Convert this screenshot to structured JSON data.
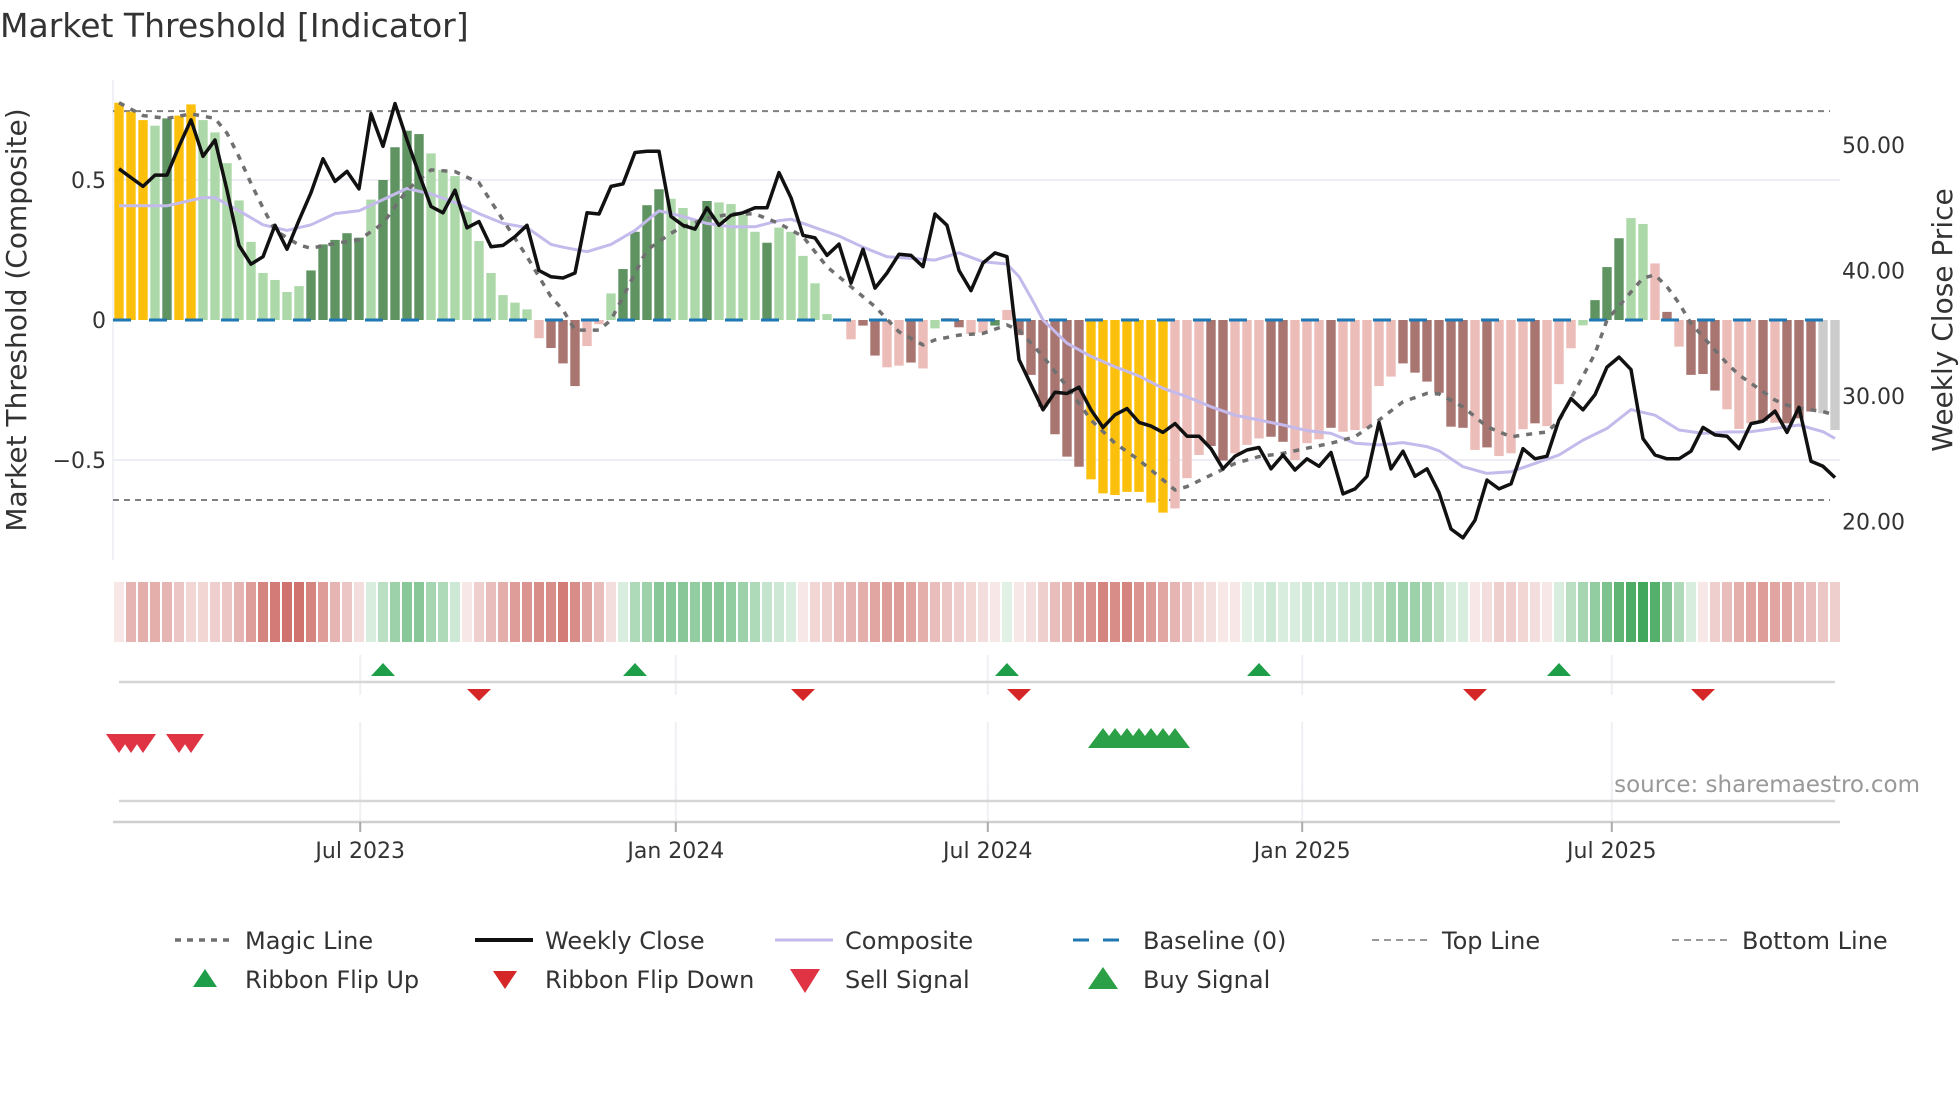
{
  "title": "Market Threshold [Indicator]",
  "source": "source: sharemaestro.com",
  "chart_data": {
    "type": "bar",
    "title": "Market Threshold [Indicator]",
    "ylabel": "Market Threshold (Composite)",
    "ylabel_right": "Weekly Close Price",
    "ylim": [
      -0.857,
      0.857
    ],
    "ylim_right": [
      16.9,
      55.2
    ],
    "yticks": [
      {
        "v": 0.5,
        "label": "0.5"
      },
      {
        "v": 0,
        "label": "0"
      },
      {
        "v": -0.5,
        "label": "−0.5"
      }
    ],
    "yticks_right": [
      {
        "v": 50,
        "label": "50.00"
      },
      {
        "v": 40,
        "label": "40.00"
      },
      {
        "v": 30,
        "label": "30.00"
      },
      {
        "v": 20,
        "label": "20.00"
      }
    ],
    "xticks": [
      {
        "week": 20.1,
        "label": "Jul 2023"
      },
      {
        "week": 46.4,
        "label": "Jan 2024"
      },
      {
        "week": 72.4,
        "label": "Jul 2024"
      },
      {
        "week": 98.6,
        "label": "Jan 2025"
      },
      {
        "week": 124.4,
        "label": "Jul 2025"
      }
    ],
    "top_line": 0.746,
    "bottom_line": -0.643,
    "baseline": 0,
    "colors": {
      "Y": "#fcc00c",
      "G": "#5f9462",
      "g": "#add8a9",
      "R": "#a87571",
      "r": "#ebbcb8",
      "close": "#111111",
      "composite": "#c4baec",
      "magic": "#707070",
      "baseline": "#1f77b4",
      "ribbon_pos": "#2e9e4a",
      "ribbon_neg": "#c5524c",
      "flip_up": "#1e9e48",
      "flip_down": "#d62728",
      "sell": "#e03444",
      "buy": "#2ca046"
    },
    "bar_kinds": "YYYgGYYgggggggggGGGGGgGGGGgggggggggrRRRrrgGGGGgggGggggGgggggrrRRrrRrgrRrrGrRRRRRRYYYYYYYrrrRRrrrRRrrrRrrrrrRRRRRRrRrrrRrrrgGGGggrRrRRRrrrRrRRR",
    "bars": [
      0.776,
      0.744,
      0.714,
      0.694,
      0.72,
      0.73,
      0.77,
      0.714,
      0.67,
      0.56,
      0.427,
      0.279,
      0.168,
      0.143,
      0.1,
      0.121,
      0.177,
      0.27,
      0.286,
      0.31,
      0.294,
      0.43,
      0.5,
      0.617,
      0.676,
      0.664,
      0.595,
      0.536,
      0.514,
      0.387,
      0.282,
      0.168,
      0.089,
      0.062,
      0.038,
      -0.065,
      -0.1,
      -0.155,
      -0.236,
      -0.093,
      -0.015,
      0.095,
      0.182,
      0.315,
      0.41,
      0.467,
      0.433,
      0.4,
      0.36,
      0.425,
      0.42,
      0.414,
      0.375,
      0.315,
      0.276,
      0.33,
      0.315,
      0.229,
      0.131,
      0.021,
      0.005,
      -0.069,
      -0.02,
      -0.127,
      -0.169,
      -0.163,
      -0.152,
      -0.173,
      -0.03,
      0.007,
      -0.026,
      -0.05,
      -0.045,
      -0.02,
      0.036,
      -0.054,
      -0.196,
      -0.31,
      -0.408,
      -0.488,
      -0.524,
      -0.569,
      -0.619,
      -0.625,
      -0.614,
      -0.614,
      -0.652,
      -0.688,
      -0.673,
      -0.565,
      -0.482,
      -0.45,
      -0.502,
      -0.476,
      -0.446,
      -0.423,
      -0.417,
      -0.435,
      -0.5,
      -0.44,
      -0.426,
      -0.385,
      -0.399,
      -0.393,
      -0.387,
      -0.236,
      -0.202,
      -0.155,
      -0.188,
      -0.22,
      -0.26,
      -0.381,
      -0.385,
      -0.464,
      -0.455,
      -0.486,
      -0.476,
      -0.39,
      -0.369,
      -0.379,
      -0.229,
      -0.101,
      -0.019,
      0.071,
      0.189,
      0.292,
      0.364,
      0.343,
      0.202,
      0.029,
      -0.095,
      -0.196,
      -0.193,
      -0.252,
      -0.319,
      -0.389,
      -0.369,
      -0.36,
      -0.367,
      -0.369,
      -0.351,
      -0.327,
      -0.333,
      -0.393
    ],
    "weekly_close": [
      48.1,
      47.4,
      46.7,
      47.6,
      47.6,
      49.9,
      52.0,
      49.1,
      50.4,
      46.4,
      42.0,
      40.5,
      41.1,
      43.6,
      41.7,
      44.0,
      46.2,
      48.9,
      47.1,
      47.9,
      46.5,
      52.5,
      49.9,
      53.3,
      50.4,
      47.7,
      45.1,
      44.6,
      46.4,
      43.4,
      43.9,
      41.9,
      42.0,
      42.7,
      43.6,
      40.0,
      39.5,
      39.4,
      39.8,
      44.6,
      44.5,
      46.7,
      46.9,
      49.4,
      49.5,
      49.5,
      44.3,
      43.6,
      43.3,
      45.0,
      43.6,
      44.4,
      44.6,
      45.0,
      45.0,
      47.8,
      45.8,
      42.8,
      42.6,
      41.2,
      42.1,
      39.0,
      41.7,
      38.6,
      39.8,
      41.3,
      41.2,
      40.3,
      44.5,
      43.6,
      40.0,
      38.4,
      40.6,
      41.4,
      41.1,
      32.9,
      30.9,
      28.9,
      30.3,
      30.2,
      30.7,
      28.9,
      27.5,
      28.5,
      29.0,
      27.9,
      27.6,
      27.1,
      27.8,
      26.8,
      26.8,
      25.8,
      24.2,
      25.2,
      25.7,
      25.9,
      24.2,
      25.3,
      24.1,
      25.0,
      24.4,
      25.5,
      22.2,
      22.6,
      23.6,
      27.9,
      24.2,
      25.6,
      23.6,
      24.2,
      22.3,
      19.4,
      18.7,
      20.1,
      23.3,
      22.6,
      23.0,
      25.8,
      25.0,
      25.2,
      28.1,
      29.8,
      28.9,
      30.1,
      32.3,
      33.1,
      32.1,
      26.6,
      25.3,
      25.0,
      25.0,
      25.6,
      27.5,
      26.9,
      26.8,
      25.8,
      27.8,
      28.0,
      28.8,
      27.1,
      29.1,
      24.8,
      24.4,
      23.5
    ],
    "composite": [
      [
        0,
        0.408
      ],
      [
        4,
        0.408
      ],
      [
        7,
        0.437
      ],
      [
        8,
        0.437
      ],
      [
        10,
        0.39
      ],
      [
        12,
        0.34
      ],
      [
        14,
        0.32
      ],
      [
        16,
        0.34
      ],
      [
        18,
        0.38
      ],
      [
        20,
        0.39
      ],
      [
        22,
        0.43
      ],
      [
        24,
        0.47
      ],
      [
        26,
        0.45
      ],
      [
        28,
        0.42
      ],
      [
        30,
        0.38
      ],
      [
        32,
        0.345
      ],
      [
        34,
        0.33
      ],
      [
        36,
        0.27
      ],
      [
        37,
        0.26
      ],
      [
        39,
        0.244
      ],
      [
        41,
        0.27
      ],
      [
        43,
        0.32
      ],
      [
        45,
        0.39
      ],
      [
        47,
        0.37
      ],
      [
        49,
        0.345
      ],
      [
        51,
        0.333
      ],
      [
        53,
        0.333
      ],
      [
        55,
        0.355
      ],
      [
        56,
        0.36
      ],
      [
        58,
        0.33
      ],
      [
        60,
        0.3
      ],
      [
        62,
        0.26
      ],
      [
        64,
        0.226
      ],
      [
        66,
        0.22
      ],
      [
        68,
        0.214
      ],
      [
        70,
        0.24
      ],
      [
        72,
        0.208
      ],
      [
        74,
        0.2
      ],
      [
        75,
        0.155
      ],
      [
        76,
        0.08
      ],
      [
        77,
        0.0
      ],
      [
        79,
        -0.083
      ],
      [
        81,
        -0.13
      ],
      [
        83,
        -0.167
      ],
      [
        85,
        -0.2
      ],
      [
        87,
        -0.244
      ],
      [
        89,
        -0.274
      ],
      [
        91,
        -0.31
      ],
      [
        93,
        -0.34
      ],
      [
        95,
        -0.357
      ],
      [
        97,
        -0.375
      ],
      [
        99,
        -0.395
      ],
      [
        101,
        -0.405
      ],
      [
        103,
        -0.44
      ],
      [
        105,
        -0.446
      ],
      [
        107,
        -0.438
      ],
      [
        109,
        -0.452
      ],
      [
        110,
        -0.467
      ],
      [
        112,
        -0.524
      ],
      [
        114,
        -0.548
      ],
      [
        116,
        -0.542
      ],
      [
        118,
        -0.512
      ],
      [
        120,
        -0.482
      ],
      [
        122,
        -0.429
      ],
      [
        124,
        -0.387
      ],
      [
        126,
        -0.32
      ],
      [
        128,
        -0.34
      ],
      [
        130,
        -0.393
      ],
      [
        132,
        -0.405
      ],
      [
        134,
        -0.4
      ],
      [
        136,
        -0.399
      ],
      [
        138,
        -0.387
      ],
      [
        140,
        -0.375
      ],
      [
        142,
        -0.399
      ],
      [
        143,
        -0.423
      ]
    ],
    "magic_line": [
      [
        0,
        0.776
      ],
      [
        2,
        0.73
      ],
      [
        4,
        0.72
      ],
      [
        6,
        0.736
      ],
      [
        8,
        0.72
      ],
      [
        9,
        0.667
      ],
      [
        10,
        0.583
      ],
      [
        11,
        0.488
      ],
      [
        12,
        0.4
      ],
      [
        13,
        0.32
      ],
      [
        15,
        0.268
      ],
      [
        16,
        0.256
      ],
      [
        18,
        0.274
      ],
      [
        20,
        0.286
      ],
      [
        22,
        0.345
      ],
      [
        24,
        0.464
      ],
      [
        26,
        0.536
      ],
      [
        28,
        0.53
      ],
      [
        30,
        0.49
      ],
      [
        32,
        0.357
      ],
      [
        34,
        0.226
      ],
      [
        36,
        0.083
      ],
      [
        37,
        0.036
      ],
      [
        38,
        -0.036
      ],
      [
        40,
        -0.036
      ],
      [
        41,
        0.0
      ],
      [
        42,
        0.083
      ],
      [
        43,
        0.167
      ],
      [
        44,
        0.25
      ],
      [
        46,
        0.31
      ],
      [
        47,
        0.333
      ],
      [
        49,
        0.363
      ],
      [
        51,
        0.379
      ],
      [
        53,
        0.379
      ],
      [
        55,
        0.345
      ],
      [
        57,
        0.298
      ],
      [
        59,
        0.19
      ],
      [
        61,
        0.119
      ],
      [
        63,
        0.048
      ],
      [
        65,
        -0.042
      ],
      [
        67,
        -0.089
      ],
      [
        68,
        -0.071
      ],
      [
        70,
        -0.054
      ],
      [
        72,
        -0.048
      ],
      [
        74,
        -0.018
      ],
      [
        75,
        -0.036
      ],
      [
        77,
        -0.13
      ],
      [
        79,
        -0.238
      ],
      [
        81,
        -0.357
      ],
      [
        83,
        -0.44
      ],
      [
        85,
        -0.5
      ],
      [
        87,
        -0.571
      ],
      [
        88,
        -0.607
      ],
      [
        89,
        -0.595
      ],
      [
        91,
        -0.554
      ],
      [
        93,
        -0.512
      ],
      [
        95,
        -0.488
      ],
      [
        97,
        -0.476
      ],
      [
        99,
        -0.458
      ],
      [
        101,
        -0.44
      ],
      [
        103,
        -0.417
      ],
      [
        105,
        -0.357
      ],
      [
        107,
        -0.292
      ],
      [
        109,
        -0.262
      ],
      [
        110,
        -0.264
      ],
      [
        112,
        -0.31
      ],
      [
        114,
        -0.381
      ],
      [
        116,
        -0.417
      ],
      [
        118,
        -0.405
      ],
      [
        119,
        -0.4
      ],
      [
        120,
        -0.36
      ],
      [
        121,
        -0.28
      ],
      [
        122,
        -0.2
      ],
      [
        123,
        -0.12
      ],
      [
        124,
        0.0
      ],
      [
        125,
        0.05
      ],
      [
        126,
        0.1
      ],
      [
        127,
        0.15
      ],
      [
        128,
        0.161
      ],
      [
        129,
        0.119
      ],
      [
        130,
        0.06
      ],
      [
        131,
        -0.012
      ],
      [
        132,
        -0.06
      ],
      [
        133,
        -0.107
      ],
      [
        134,
        -0.155
      ],
      [
        135,
        -0.196
      ],
      [
        136,
        -0.226
      ],
      [
        137,
        -0.256
      ],
      [
        138,
        -0.286
      ],
      [
        139,
        -0.304
      ],
      [
        140,
        -0.315
      ],
      [
        142,
        -0.327
      ],
      [
        143,
        -0.339
      ]
    ],
    "ribbon": [
      -0.15,
      -0.45,
      -0.5,
      -0.5,
      -0.45,
      -0.35,
      -0.25,
      -0.25,
      -0.3,
      -0.35,
      -0.45,
      -0.6,
      -0.75,
      -0.8,
      -0.85,
      -0.85,
      -0.75,
      -0.6,
      -0.45,
      -0.35,
      -0.2,
      0.2,
      0.35,
      0.5,
      0.6,
      0.6,
      0.45,
      0.4,
      0.25,
      -0.15,
      -0.3,
      -0.4,
      -0.5,
      -0.6,
      -0.65,
      -0.7,
      -0.7,
      -0.8,
      -0.7,
      -0.55,
      -0.4,
      -0.2,
      0.2,
      0.4,
      0.5,
      0.6,
      0.6,
      0.6,
      0.55,
      0.6,
      0.6,
      0.55,
      0.5,
      0.4,
      0.3,
      0.25,
      0.2,
      -0.15,
      -0.25,
      -0.3,
      -0.4,
      -0.45,
      -0.5,
      -0.55,
      -0.6,
      -0.6,
      -0.55,
      -0.5,
      -0.4,
      -0.35,
      -0.3,
      -0.25,
      -0.2,
      -0.15,
      0.15,
      -0.1,
      -0.2,
      -0.3,
      -0.4,
      -0.5,
      -0.6,
      -0.65,
      -0.75,
      -0.7,
      -0.75,
      -0.65,
      -0.6,
      -0.55,
      -0.45,
      -0.35,
      -0.25,
      -0.2,
      -0.15,
      -0.15,
      0.15,
      0.2,
      0.25,
      0.2,
      0.2,
      0.25,
      0.25,
      0.25,
      0.25,
      0.25,
      0.3,
      0.35,
      0.45,
      0.5,
      0.5,
      0.45,
      0.35,
      0.2,
      0.2,
      -0.15,
      -0.2,
      -0.3,
      -0.3,
      -0.25,
      -0.2,
      -0.15,
      0.2,
      0.35,
      0.45,
      0.55,
      0.65,
      0.8,
      0.9,
      0.95,
      0.85,
      0.6,
      0.4,
      0.2,
      -0.15,
      -0.3,
      -0.4,
      -0.5,
      -0.55,
      -0.6,
      -0.55,
      -0.55,
      -0.45,
      -0.4,
      -0.35,
      -0.3
    ],
    "ribbon_flip_up": [
      22,
      43,
      74,
      95,
      120
    ],
    "ribbon_flip_down": [
      30,
      57,
      75,
      113,
      132
    ],
    "sell_signals": [
      0,
      1,
      2,
      5,
      6
    ],
    "buy_signals": [
      82,
      83,
      84,
      85,
      86,
      87,
      88
    ],
    "legend": [
      {
        "label": "Magic Line",
        "kind": "dotted"
      },
      {
        "label": "Weekly Close",
        "kind": "solid-black"
      },
      {
        "label": "Composite",
        "kind": "solid-lavender"
      },
      {
        "label": "Baseline (0)",
        "kind": "dashed-blue"
      },
      {
        "label": "Top Line",
        "kind": "dashed-gray"
      },
      {
        "label": "Bottom Line",
        "kind": "dashed-gray"
      },
      {
        "label": "Ribbon Flip Up",
        "kind": "tri-up-small"
      },
      {
        "label": "Ribbon Flip Down",
        "kind": "tri-down-small"
      },
      {
        "label": "Sell Signal",
        "kind": "tri-down-big"
      },
      {
        "label": "Buy Signal",
        "kind": "tri-up-big"
      }
    ],
    "legend_position": "bottom"
  }
}
